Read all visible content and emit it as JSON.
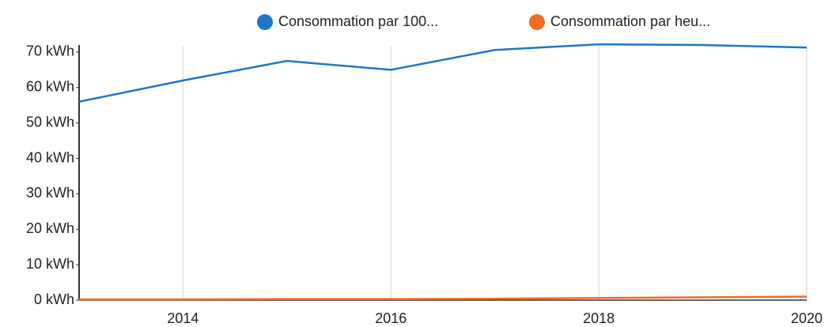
{
  "chart_data": {
    "type": "line",
    "x": [
      2013,
      2014,
      2015,
      2016,
      2017,
      2018,
      2019,
      2020
    ],
    "series": [
      {
        "name": "Consommation par 100...",
        "color": "#1f77c4",
        "values": [
          56,
          62,
          67.5,
          65,
          70.6,
          72.2,
          72,
          71.3
        ]
      },
      {
        "name": "Consommation par heu...",
        "color": "#f26b21",
        "values": [
          0.2,
          0.2,
          0.3,
          0.3,
          0.4,
          0.6,
          0.8,
          1.0
        ]
      }
    ],
    "xlim": [
      2013,
      2020
    ],
    "xticks": [
      2014,
      2016,
      2018,
      2020
    ],
    "ylim": [
      0,
      72
    ],
    "yticks": [
      {
        "value": 0,
        "label": "0 kWh"
      },
      {
        "value": 10,
        "label": "10 kWh"
      },
      {
        "value": 20,
        "label": "20 kWh"
      },
      {
        "value": 30,
        "label": "30 kWh"
      },
      {
        "value": 40,
        "label": "40 kWh"
      },
      {
        "value": 50,
        "label": "50 kWh"
      },
      {
        "value": 60,
        "label": "60 kWh"
      },
      {
        "value": 70,
        "label": "70 kWh"
      }
    ],
    "grid": "x",
    "legend": "top"
  }
}
